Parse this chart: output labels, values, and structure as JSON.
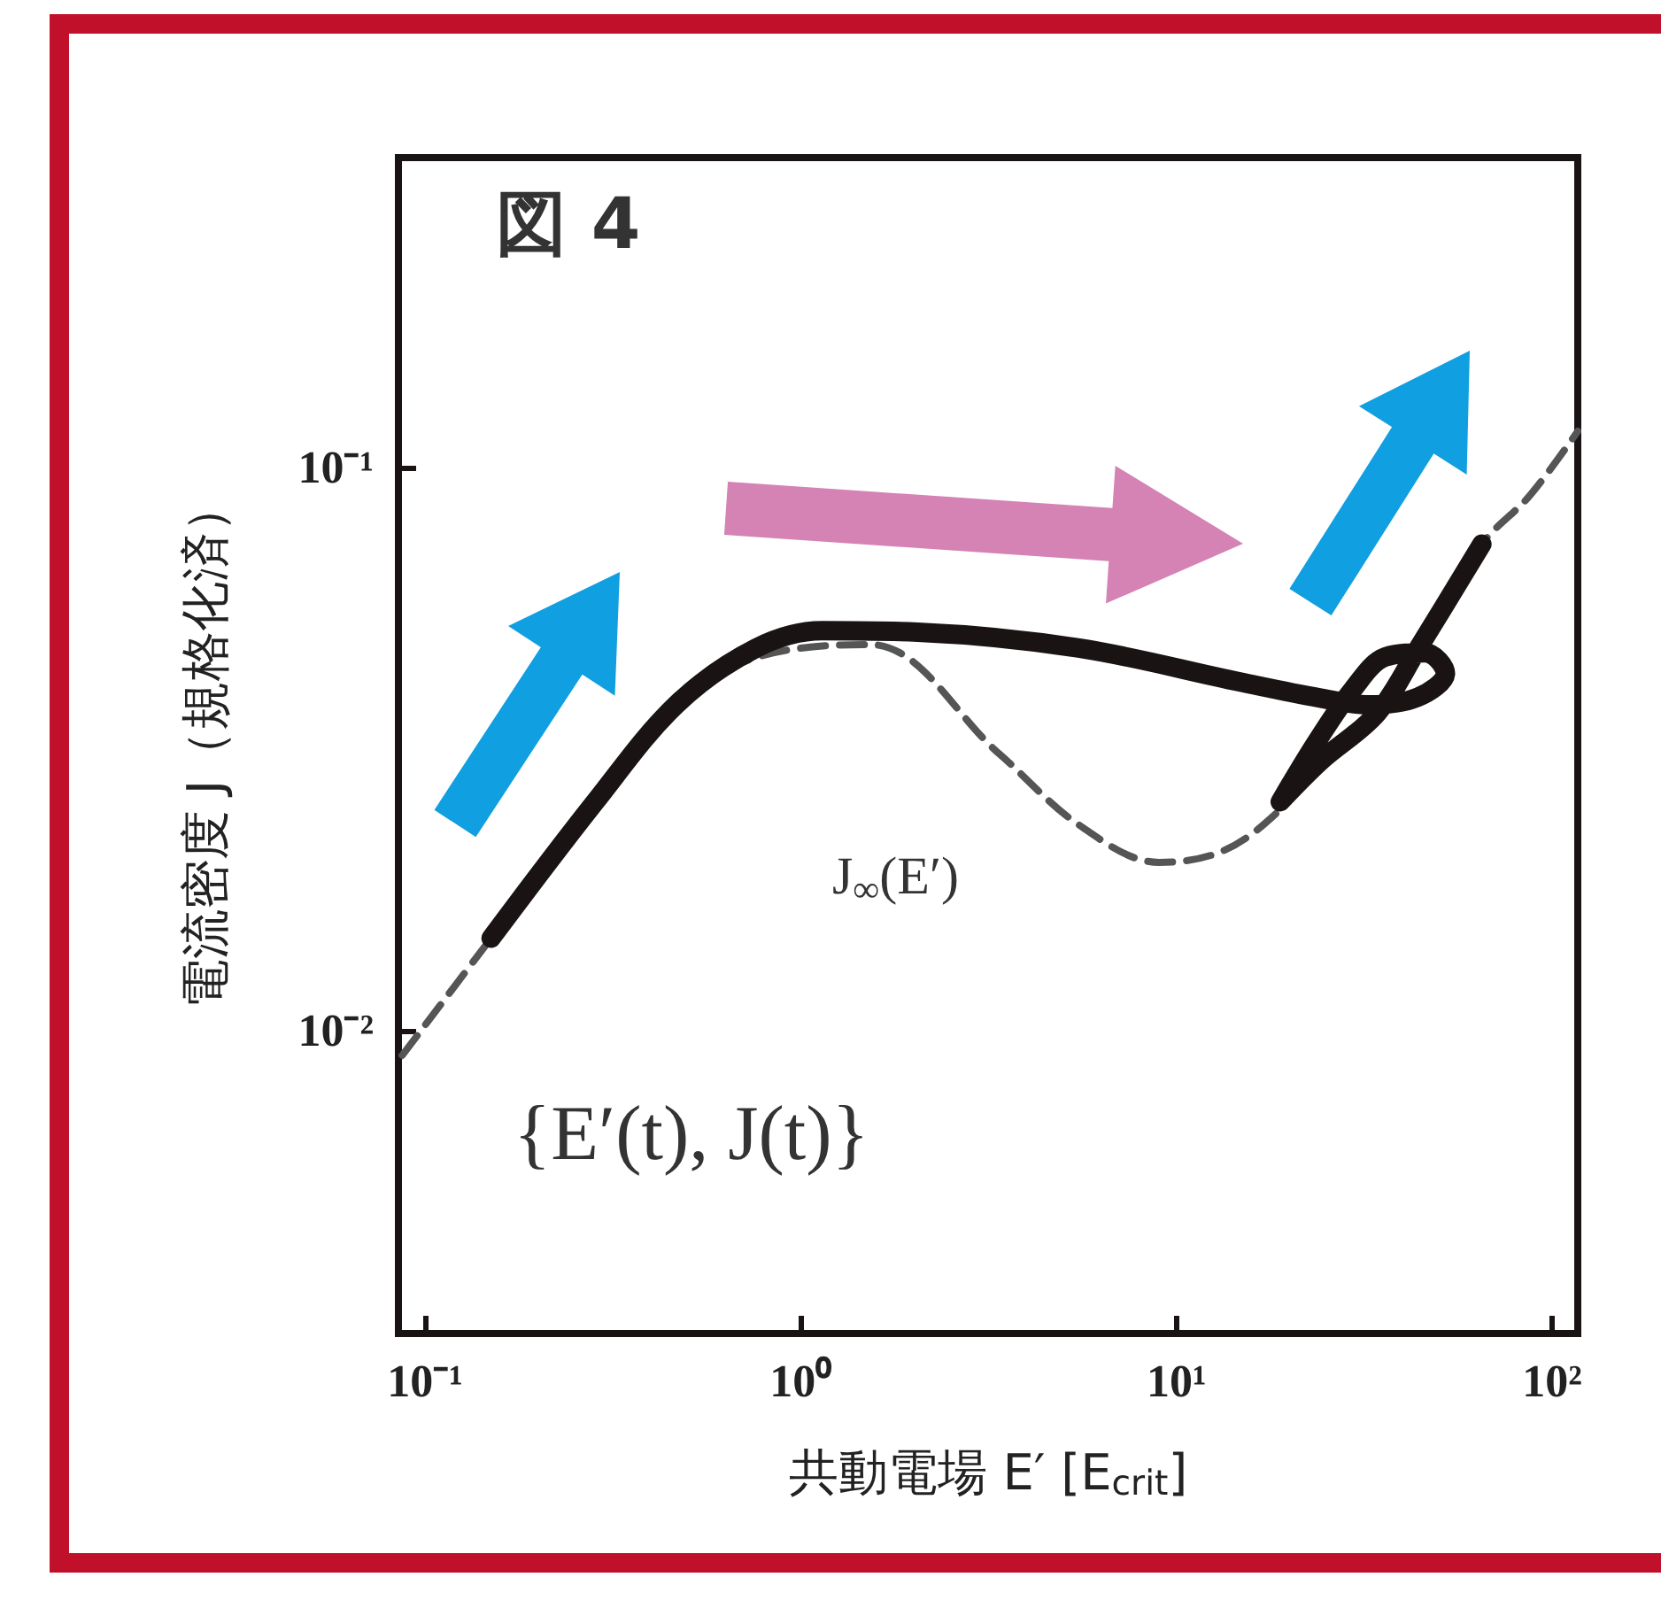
{
  "chart_data": {
    "type": "line",
    "xlabel": "共動電場 E′ [E$_{crit}$]",
    "ylabel": "電流密度 J（規格化済）",
    "log": "xy",
    "marker": "none",
    "grid": false,
    "legend": false,
    "xlim": [
      0.085,
      117
    ],
    "ylim": [
      0.0029,
      0.355
    ],
    "xticks": [
      {
        "value": 0.1,
        "label": "10⁻¹"
      },
      {
        "value": 1,
        "label": "10⁰"
      },
      {
        "value": 10,
        "label": "10¹"
      },
      {
        "value": 100,
        "label": "10²"
      }
    ],
    "yticks": [
      {
        "value": 0.01,
        "label": "10⁻²"
      },
      {
        "value": 0.1,
        "label": "10⁻¹"
      }
    ],
    "series": [
      {
        "color": "#555555",
        "line_style": "dashed",
        "x": [
          0.087,
          0.15,
          0.284,
          0.468,
          0.76,
          1.53,
          3.38,
          5.5,
          9.0,
          13.4,
          18.9,
          24.2,
          34.2,
          43.9,
          65,
          87,
          117
        ],
        "values": [
          0.00904,
          0.0146,
          0.0255,
          0.038,
          0.046,
          0.0485,
          0.031,
          0.0232,
          0.0199,
          0.0209,
          0.0247,
          0.0301,
          0.0366,
          0.0476,
          0.0731,
          0.089,
          0.116
        ]
      },
      {
        "color": "#1a1314",
        "line_style": "solid",
        "x": [
          0.15,
          0.284,
          0.468,
          0.762,
          1.14,
          2.05,
          5.5,
          14.8,
          24,
          32.6,
          43.9,
          52,
          46,
          36,
          29.5,
          23.7,
          18.9,
          24.2,
          34.2,
          43.9,
          65
        ],
        "values": [
          0.0146,
          0.0255,
          0.038,
          0.0478,
          0.0513,
          0.051,
          0.0478,
          0.0416,
          0.039,
          0.0379,
          0.0391,
          0.0431,
          0.0469,
          0.0461,
          0.0404,
          0.0327,
          0.0255,
          0.0301,
          0.0366,
          0.0476,
          0.0731
        ]
      }
    ],
    "annotations": [
      "図 4",
      "J$_{∞}$(E′)",
      "{E′(t), J(t)}"
    ]
  }
}
